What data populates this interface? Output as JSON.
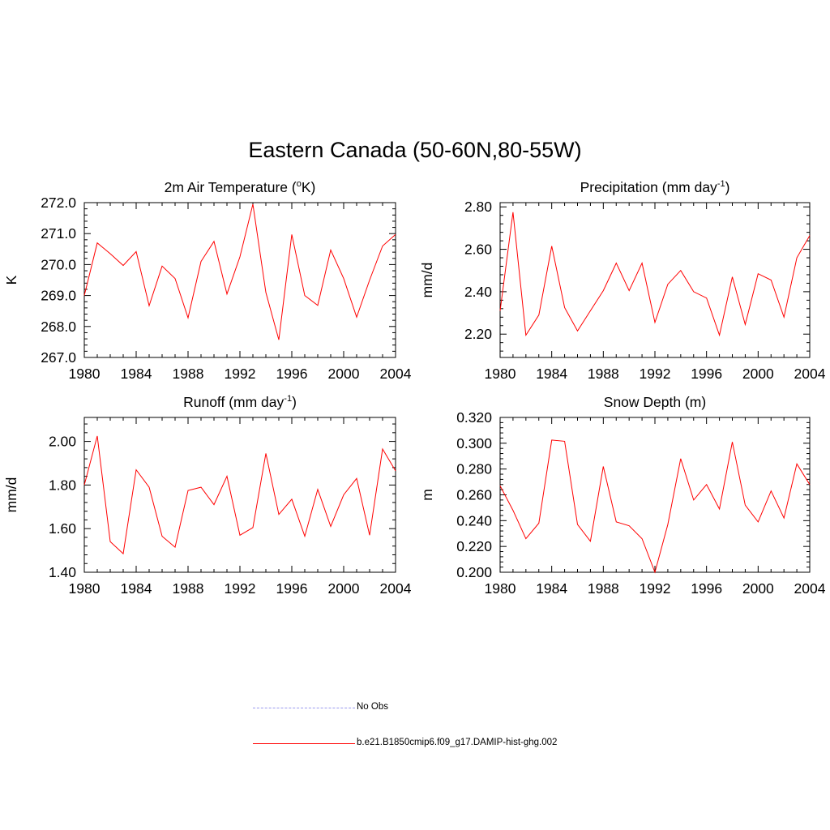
{
  "figure": {
    "title": "Eastern Canada (50-60N,80-55W)"
  },
  "colors": {
    "series": "#ff0000",
    "obs": "#9999ee"
  },
  "legend": [
    {
      "label": "No Obs",
      "style": "dashed",
      "color": "#9999ee"
    },
    {
      "label": "b.e21.B1850cmip6.f09_g17.DAMIP-hist-ghg.002",
      "style": "solid",
      "color": "#ff0000"
    }
  ],
  "chart_data": [
    {
      "type": "line",
      "title": "2m Air Temperature",
      "title_unit_pre": " (",
      "title_sup": "o",
      "title_unit_post": "K)",
      "ylabel": "K",
      "xlim": [
        1980,
        2004
      ],
      "ylim": [
        267.0,
        272.0
      ],
      "xticks": [
        "1980",
        "1984",
        "1988",
        "1992",
        "1996",
        "2000",
        "2004"
      ],
      "yticks": [
        "267.0",
        "268.0",
        "269.0",
        "270.0",
        "271.0",
        "272.0"
      ],
      "ytick_values": [
        267.0,
        268.0,
        269.0,
        270.0,
        271.0,
        272.0
      ],
      "x": [
        1980,
        1981,
        1982,
        1983,
        1984,
        1985,
        1986,
        1987,
        1988,
        1989,
        1990,
        1991,
        1992,
        1993,
        1994,
        1995,
        1996,
        1997,
        1998,
        1999,
        2000,
        2001,
        2002,
        2003,
        2004
      ],
      "series": [
        {
          "values": [
            269.0,
            270.7,
            270.35,
            269.97,
            270.42,
            268.67,
            269.95,
            269.55,
            268.28,
            270.1,
            270.75,
            269.05,
            270.25,
            271.95,
            269.1,
            267.57,
            270.97,
            269.0,
            268.68,
            270.47,
            269.55,
            268.3,
            269.5,
            270.6,
            270.97
          ]
        }
      ]
    },
    {
      "type": "line",
      "title": "Precipitation",
      "title_unit_pre": " (mm day",
      "title_sup": "-1",
      "title_unit_post": ")",
      "ylabel": "mm/d",
      "xlim": [
        1980,
        2004
      ],
      "ylim": [
        2.09,
        2.82
      ],
      "xticks": [
        "1980",
        "1984",
        "1988",
        "1992",
        "1996",
        "2000",
        "2004"
      ],
      "yticks": [
        "2.20",
        "2.40",
        "2.60",
        "2.80"
      ],
      "ytick_values": [
        2.2,
        2.4,
        2.6,
        2.8
      ],
      "x": [
        1980,
        1981,
        1982,
        1983,
        1984,
        1985,
        1986,
        1987,
        1988,
        1989,
        1990,
        1991,
        1992,
        1993,
        1994,
        1995,
        1996,
        1997,
        1998,
        1999,
        2000,
        2001,
        2002,
        2003,
        2004
      ],
      "series": [
        {
          "values": [
            2.31,
            2.775,
            2.195,
            2.29,
            2.615,
            2.325,
            2.215,
            2.31,
            2.405,
            2.535,
            2.405,
            2.535,
            2.255,
            2.435,
            2.5,
            2.4,
            2.37,
            2.195,
            2.47,
            2.245,
            2.485,
            2.455,
            2.28,
            2.56,
            2.665
          ]
        }
      ]
    },
    {
      "type": "line",
      "title": "Runoff",
      "title_unit_pre": " (mm day",
      "title_sup": "-1",
      "title_unit_post": ")",
      "ylabel": "mm/d",
      "xlim": [
        1980,
        2004
      ],
      "ylim": [
        1.4,
        2.11
      ],
      "xticks": [
        "1980",
        "1984",
        "1988",
        "1992",
        "1996",
        "2000",
        "2004"
      ],
      "yticks": [
        "1.40",
        "1.60",
        "1.80",
        "2.00"
      ],
      "ytick_values": [
        1.4,
        1.6,
        1.8,
        2.0
      ],
      "x": [
        1980,
        1981,
        1982,
        1983,
        1984,
        1985,
        1986,
        1987,
        1988,
        1989,
        1990,
        1991,
        1992,
        1993,
        1994,
        1995,
        1996,
        1997,
        1998,
        1999,
        2000,
        2001,
        2002,
        2003,
        2004
      ],
      "series": [
        {
          "values": [
            1.8,
            2.025,
            1.54,
            1.485,
            1.87,
            1.79,
            1.565,
            1.515,
            1.775,
            1.79,
            1.71,
            1.84,
            1.57,
            1.605,
            1.945,
            1.665,
            1.735,
            1.565,
            1.78,
            1.61,
            1.755,
            1.83,
            1.57,
            1.965,
            1.865
          ]
        }
      ]
    },
    {
      "type": "line",
      "title": "Snow Depth (m)",
      "title_unit_pre": "",
      "title_sup": "",
      "title_unit_post": "",
      "ylabel": "m",
      "xlim": [
        1980,
        2004
      ],
      "ylim": [
        0.2,
        0.32
      ],
      "xticks": [
        "1980",
        "1984",
        "1988",
        "1992",
        "1996",
        "2000",
        "2004"
      ],
      "yticks": [
        "0.200",
        "0.220",
        "0.240",
        "0.260",
        "0.280",
        "0.300",
        "0.320"
      ],
      "ytick_values": [
        0.2,
        0.22,
        0.24,
        0.26,
        0.28,
        0.3,
        0.32
      ],
      "x": [
        1980,
        1981,
        1982,
        1983,
        1984,
        1985,
        1986,
        1987,
        1988,
        1989,
        1990,
        1991,
        1992,
        1993,
        1994,
        1995,
        1996,
        1997,
        1998,
        1999,
        2000,
        2001,
        2002,
        2003,
        2004
      ],
      "series": [
        {
          "values": [
            0.267,
            0.248,
            0.226,
            0.238,
            0.3025,
            0.3015,
            0.237,
            0.224,
            0.282,
            0.239,
            0.236,
            0.226,
            0.2,
            0.237,
            0.288,
            0.256,
            0.268,
            0.249,
            0.301,
            0.252,
            0.239,
            0.263,
            0.242,
            0.284,
            0.268
          ]
        }
      ]
    }
  ]
}
